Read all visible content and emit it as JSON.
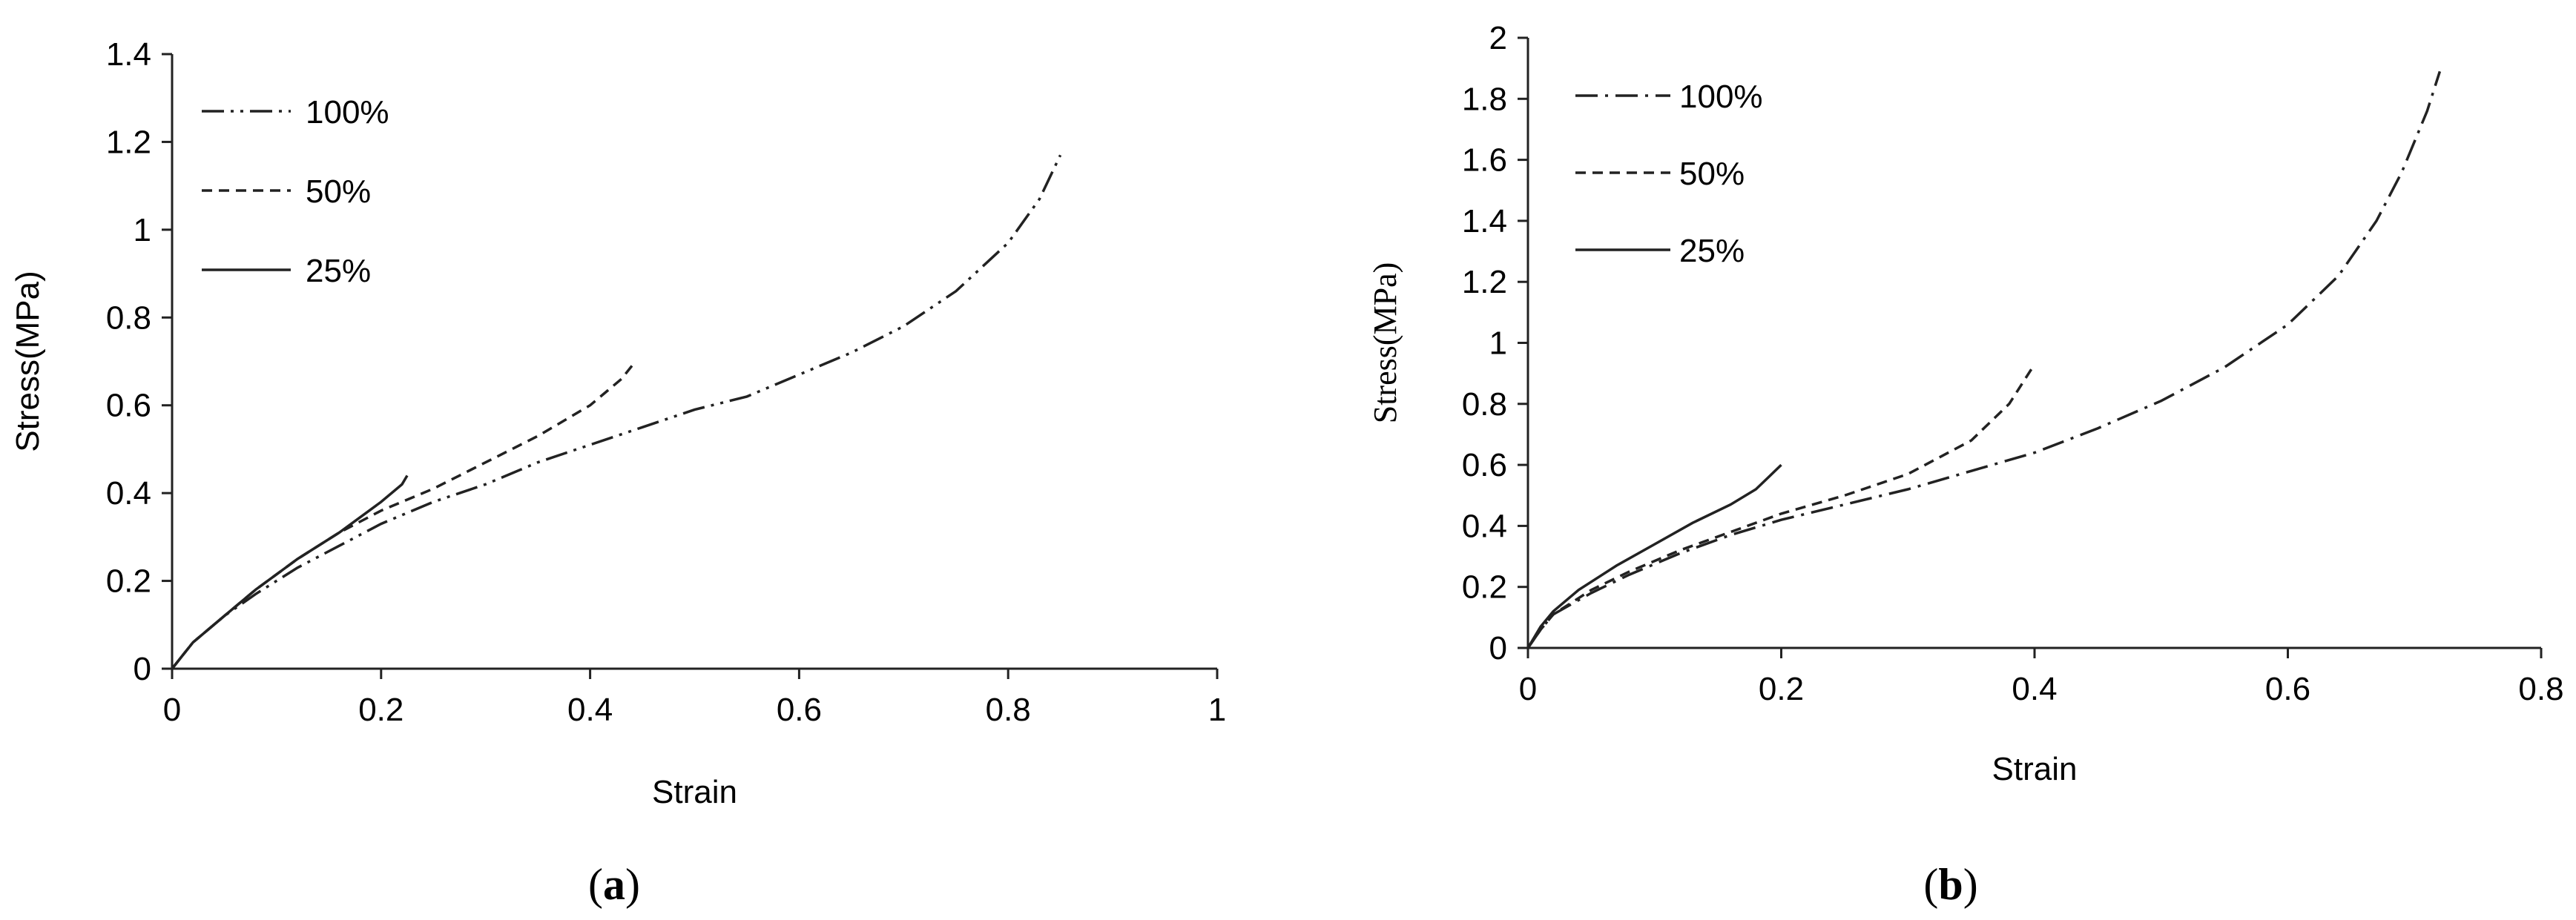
{
  "chart_data": [
    {
      "type": "line",
      "panel_label": "a",
      "xlabel": "Strain",
      "ylabel": "Stress(MPa)",
      "xlim": [
        0,
        1
      ],
      "ylim": [
        0,
        1.4
      ],
      "x_ticks": [
        "0",
        "0.2",
        "0.4",
        "0.6",
        "0.8",
        "1"
      ],
      "y_ticks": [
        "0",
        "0.2",
        "0.4",
        "0.6",
        "0.8",
        "1",
        "1.2",
        "1.4"
      ],
      "x_tick_values": [
        0,
        0.2,
        0.4,
        0.6,
        0.8,
        1
      ],
      "y_tick_values": [
        0,
        0.2,
        0.4,
        0.6,
        0.8,
        1,
        1.2,
        1.4
      ],
      "grid": false,
      "legend_position": "top-left",
      "series": [
        {
          "name": "100%",
          "style": "dash-dot-dot",
          "points": [
            [
              0,
              0
            ],
            [
              0.01,
              0.03
            ],
            [
              0.02,
              0.06
            ],
            [
              0.05,
              0.12
            ],
            [
              0.08,
              0.17
            ],
            [
              0.12,
              0.23
            ],
            [
              0.16,
              0.28
            ],
            [
              0.2,
              0.33
            ],
            [
              0.25,
              0.38
            ],
            [
              0.3,
              0.42
            ],
            [
              0.35,
              0.47
            ],
            [
              0.4,
              0.51
            ],
            [
              0.45,
              0.55
            ],
            [
              0.5,
              0.59
            ],
            [
              0.55,
              0.62
            ],
            [
              0.6,
              0.67
            ],
            [
              0.65,
              0.72
            ],
            [
              0.7,
              0.78
            ],
            [
              0.75,
              0.86
            ],
            [
              0.8,
              0.97
            ],
            [
              0.83,
              1.07
            ],
            [
              0.85,
              1.17
            ]
          ]
        },
        {
          "name": "50%",
          "style": "dashed",
          "points": [
            [
              0,
              0
            ],
            [
              0.01,
              0.03
            ],
            [
              0.02,
              0.06
            ],
            [
              0.05,
              0.12
            ],
            [
              0.08,
              0.18
            ],
            [
              0.12,
              0.25
            ],
            [
              0.16,
              0.31
            ],
            [
              0.2,
              0.36
            ],
            [
              0.25,
              0.41
            ],
            [
              0.3,
              0.47
            ],
            [
              0.35,
              0.53
            ],
            [
              0.4,
              0.6
            ],
            [
              0.43,
              0.66
            ],
            [
              0.44,
              0.69
            ]
          ]
        },
        {
          "name": "25%",
          "style": "solid",
          "points": [
            [
              0,
              0
            ],
            [
              0.01,
              0.03
            ],
            [
              0.02,
              0.06
            ],
            [
              0.05,
              0.12
            ],
            [
              0.08,
              0.18
            ],
            [
              0.12,
              0.25
            ],
            [
              0.16,
              0.31
            ],
            [
              0.2,
              0.38
            ],
            [
              0.22,
              0.42
            ],
            [
              0.225,
              0.44
            ]
          ]
        }
      ]
    },
    {
      "type": "line",
      "panel_label": "b",
      "xlabel": "Strain",
      "ylabel": "Stress(MPa)",
      "xlim": [
        0,
        0.8
      ],
      "ylim": [
        0,
        2
      ],
      "x_ticks": [
        "0",
        "0.2",
        "0.4",
        "0.6",
        "0.8"
      ],
      "y_ticks": [
        "0",
        "0.2",
        "0.4",
        "0.6",
        "0.8",
        "1",
        "1.2",
        "1.4",
        "1.6",
        "1.8",
        "2"
      ],
      "x_tick_values": [
        0,
        0.2,
        0.4,
        0.6,
        0.8
      ],
      "y_tick_values": [
        0,
        0.2,
        0.4,
        0.6,
        0.8,
        1,
        1.2,
        1.4,
        1.6,
        1.8,
        2
      ],
      "grid": false,
      "legend_position": "top-left",
      "series": [
        {
          "name": "100%",
          "style": "dash-dot",
          "points": [
            [
              0,
              0
            ],
            [
              0.01,
              0.06
            ],
            [
              0.02,
              0.11
            ],
            [
              0.05,
              0.18
            ],
            [
              0.08,
              0.24
            ],
            [
              0.12,
              0.31
            ],
            [
              0.16,
              0.37
            ],
            [
              0.2,
              0.42
            ],
            [
              0.25,
              0.47
            ],
            [
              0.3,
              0.52
            ],
            [
              0.35,
              0.58
            ],
            [
              0.4,
              0.64
            ],
            [
              0.45,
              0.72
            ],
            [
              0.5,
              0.81
            ],
            [
              0.55,
              0.92
            ],
            [
              0.6,
              1.06
            ],
            [
              0.64,
              1.22
            ],
            [
              0.67,
              1.4
            ],
            [
              0.69,
              1.56
            ],
            [
              0.71,
              1.76
            ],
            [
              0.72,
              1.89
            ]
          ]
        },
        {
          "name": "50%",
          "style": "dashed",
          "points": [
            [
              0,
              0
            ],
            [
              0.01,
              0.06
            ],
            [
              0.02,
              0.11
            ],
            [
              0.05,
              0.19
            ],
            [
              0.08,
              0.25
            ],
            [
              0.12,
              0.32
            ],
            [
              0.16,
              0.38
            ],
            [
              0.2,
              0.44
            ],
            [
              0.25,
              0.5
            ],
            [
              0.3,
              0.57
            ],
            [
              0.35,
              0.68
            ],
            [
              0.38,
              0.8
            ],
            [
              0.4,
              0.93
            ]
          ]
        },
        {
          "name": "25%",
          "style": "solid",
          "points": [
            [
              0,
              0
            ],
            [
              0.01,
              0.07
            ],
            [
              0.02,
              0.12
            ],
            [
              0.04,
              0.19
            ],
            [
              0.07,
              0.27
            ],
            [
              0.1,
              0.34
            ],
            [
              0.13,
              0.41
            ],
            [
              0.16,
              0.47
            ],
            [
              0.18,
              0.52
            ],
            [
              0.19,
              0.56
            ],
            [
              0.2,
              0.6
            ]
          ]
        }
      ]
    }
  ]
}
